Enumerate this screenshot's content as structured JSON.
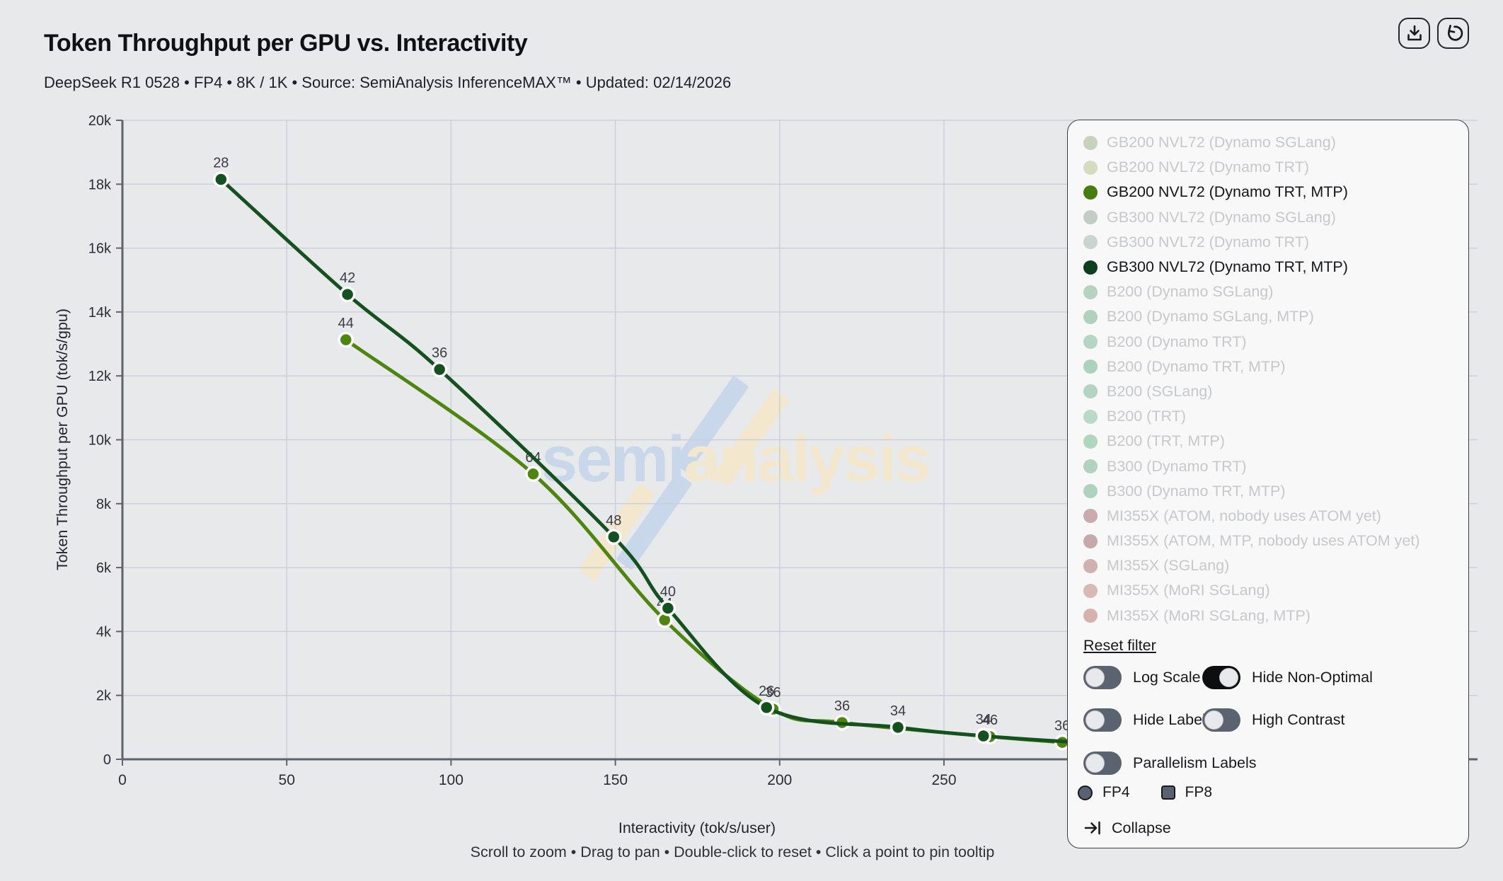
{
  "header": {
    "title": "Token Throughput per GPU vs. Interactivity",
    "subtitle": "DeepSeek R1 0528 • FP4 • 8K / 1K • Source: SemiAnalysis InferenceMAX™ • Updated: 02/14/2026"
  },
  "toolbar": {
    "icons": {
      "download": "⤓",
      "reset_view": "↺"
    }
  },
  "chart_data": {
    "type": "line",
    "title": "Token Throughput per GPU vs. Interactivity",
    "xlabel": "Interactivity (tok/s/user)",
    "ylabel": "Token Throughput per GPU (tok/s/gpu)",
    "xlim": [
      0,
      295
    ],
    "ylim": [
      0,
      20000
    ],
    "x_ticks": [
      0,
      50,
      100,
      150,
      200,
      250
    ],
    "y_ticks": [
      0,
      2000,
      4000,
      6000,
      8000,
      10000,
      12000,
      14000,
      16000,
      18000,
      20000
    ],
    "y_tick_labels": [
      "0",
      "2k",
      "4k",
      "6k",
      "8k",
      "10k",
      "12k",
      "14k",
      "16k",
      "18k",
      "20k"
    ],
    "grid": true,
    "legend_position": "right",
    "series": [
      {
        "name": "GB200 NVL72 (Dynamo TRT, MTP)",
        "color": "#4e850f",
        "points": [
          {
            "x": 68,
            "y": 13130,
            "label": "44"
          },
          {
            "x": 125,
            "y": 8930,
            "label": "64"
          },
          {
            "x": 165,
            "y": 4360,
            "label": "44"
          },
          {
            "x": 198,
            "y": 1570,
            "label": "36"
          },
          {
            "x": 219,
            "y": 1150,
            "label": "36"
          },
          {
            "x": 264,
            "y": 710,
            "label": "46"
          },
          {
            "x": 286,
            "y": 530,
            "label": "36"
          }
        ]
      },
      {
        "name": "GB300 NVL72 (Dynamo TRT, MTP)",
        "color": "#14511f",
        "points": [
          {
            "x": 30,
            "y": 18150,
            "label": "28"
          },
          {
            "x": 68.5,
            "y": 14550,
            "label": "42"
          },
          {
            "x": 96.5,
            "y": 12200,
            "label": "36"
          },
          {
            "x": 149.5,
            "y": 6960,
            "label": "48"
          },
          {
            "x": 166,
            "y": 4730,
            "label": "40"
          },
          {
            "x": 196,
            "y": 1620,
            "label": "26"
          },
          {
            "x": 236,
            "y": 1000,
            "label": "34"
          },
          {
            "x": 262,
            "y": 730,
            "label": "34"
          },
          {
            "x": 288,
            "y": 545,
            "label": null,
            "marker": false
          }
        ]
      }
    ]
  },
  "legend": {
    "reset_label": "Reset filter",
    "items": [
      {
        "label": "GB200 NVL72 (Dynamo SGLang)",
        "color": "#c7d2ba",
        "active": false
      },
      {
        "label": "GB200 NVL72 (Dynamo TRT)",
        "color": "#d3dcbf",
        "active": false
      },
      {
        "label": "GB200 NVL72 (Dynamo TRT, MTP)",
        "color": "#477d0e",
        "active": true
      },
      {
        "label": "GB300 NVL72 (Dynamo SGLang)",
        "color": "#c3cdc4",
        "active": false
      },
      {
        "label": "GB300 NVL72 (Dynamo TRT)",
        "color": "#c9d5cd",
        "active": false
      },
      {
        "label": "GB300 NVL72 (Dynamo TRT, MTP)",
        "color": "#0b3f1e",
        "active": true
      },
      {
        "label": "B200 (Dynamo SGLang)",
        "color": "#b7d2c1",
        "active": false
      },
      {
        "label": "B200 (Dynamo SGLang, MTP)",
        "color": "#b0d1bd",
        "active": false
      },
      {
        "label": "B200 (Dynamo TRT)",
        "color": "#b5d6c3",
        "active": false
      },
      {
        "label": "B200 (Dynamo TRT, MTP)",
        "color": "#add2bc",
        "active": false
      },
      {
        "label": "B200 (SGLang)",
        "color": "#b2d4c0",
        "active": false
      },
      {
        "label": "B200 (TRT)",
        "color": "#b9dac7",
        "active": false
      },
      {
        "label": "B200 (TRT, MTP)",
        "color": "#b0d5c0",
        "active": false
      },
      {
        "label": "B300 (Dynamo TRT)",
        "color": "#b2d1bf",
        "active": false
      },
      {
        "label": "B300 (Dynamo TRT, MTP)",
        "color": "#aed2bc",
        "active": false
      },
      {
        "label": "MI355X (ATOM, nobody uses ATOM yet)",
        "color": "#c9abad",
        "active": false
      },
      {
        "label": "MI355X (ATOM, MTP, nobody uses ATOM yet)",
        "color": "#c7a9ab",
        "active": false
      },
      {
        "label": "MI355X (SGLang)",
        "color": "#d0b0b2",
        "active": false
      },
      {
        "label": "MI355X (MoRI SGLang)",
        "color": "#d8b9b4",
        "active": false
      },
      {
        "label": "MI355X (MoRI SGLang, MTP)",
        "color": "#d5b2ae",
        "active": false
      }
    ]
  },
  "controls": {
    "toggles": [
      {
        "label": "Log Scale",
        "on": false,
        "row": 1,
        "col": 1
      },
      {
        "label": "Hide Non-Optimal",
        "on": true,
        "row": 1,
        "col": 2
      },
      {
        "label": "Hide Labels",
        "on": false,
        "row": 2,
        "col": 1
      },
      {
        "label": "High Contrast",
        "on": false,
        "row": 2,
        "col": 2
      },
      {
        "label": "Parallelism Labels",
        "on": false,
        "row": 3,
        "col": 1
      }
    ],
    "precision_markers": [
      {
        "label": "FP4",
        "shape": "circle"
      },
      {
        "label": "FP8",
        "shape": "square"
      }
    ],
    "collapse_label": "Collapse"
  },
  "footer": {
    "hint": "Scroll to zoom • Drag to pan • Double-click to reset • Click a point to pin tooltip"
  },
  "watermark": {
    "text_primary": "semi",
    "text_secondary": "analysis",
    "color_primary": "#c9d7ea",
    "color_secondary": "#f3e7ce"
  },
  "theme": {
    "page_bg": "#e8e9eb",
    "grid_color": "#cad0da",
    "axis_color": "#5d646e",
    "tick_text": "#2a2d31",
    "point_label": "#3a3e44"
  }
}
